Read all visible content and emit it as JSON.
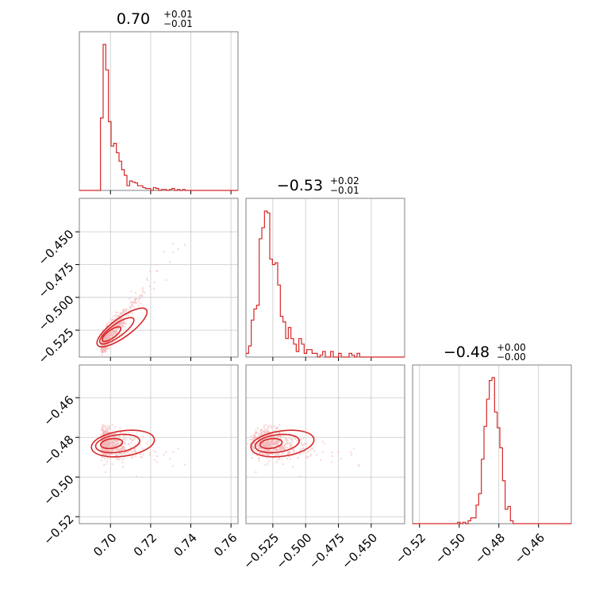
{
  "chart_data": {
    "type": "corner",
    "color": "#d62728",
    "parameters": [
      {
        "title": "0.70",
        "title_sup": "+0.01",
        "title_sub": "−0.01",
        "ticks": [
          0.7,
          0.72,
          0.74,
          0.76
        ],
        "tick_labels": [
          "0.70",
          "0.72",
          "0.74",
          "0.76"
        ],
        "range": [
          0.6845,
          0.7635
        ]
      },
      {
        "title": "−0.53",
        "title_sup": "+0.02",
        "title_sub": "−0.01",
        "ticks": [
          -0.525,
          -0.5,
          -0.475,
          -0.45
        ],
        "tick_labels": [
          "−0.525",
          "−0.500",
          "−0.475",
          "−0.450"
        ],
        "range": [
          -0.5455,
          -0.4245
        ]
      },
      {
        "title": "−0.48",
        "title_sup": "+0.00",
        "title_sub": "−0.00",
        "ticks": [
          -0.52,
          -0.5,
          -0.48,
          -0.46
        ],
        "tick_labels": [
          "−0.52",
          "−0.50",
          "−0.48",
          "−0.46"
        ],
        "range": [
          -0.5235,
          -0.4435
        ]
      }
    ],
    "grid": true
  }
}
